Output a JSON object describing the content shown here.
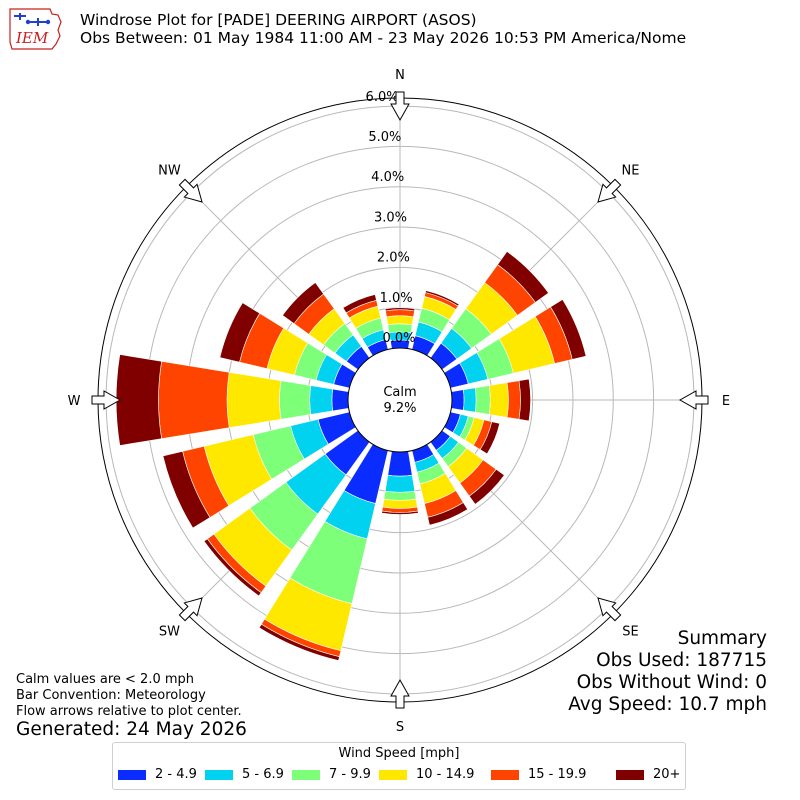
{
  "header": {
    "logo_text": "IEM",
    "title_line1": "Windrose Plot for [PADE] DEERING AIRPORT (ASOS)",
    "title_line2": "Obs Between: 01 May 1984 11:00 AM - 23 May 2026 10:53 PM America/Nome"
  },
  "chart_data": {
    "type": "windrose",
    "directions": [
      "N",
      "NNE",
      "NE",
      "ENE",
      "E",
      "ESE",
      "SE",
      "SSE",
      "S",
      "SSW",
      "SW",
      "WSW",
      "W",
      "WNW",
      "NW",
      "NNW"
    ],
    "compass_labels": [
      "N",
      "NE",
      "E",
      "SE",
      "S",
      "SW",
      "W",
      "NW"
    ],
    "radial_ticks": [
      "0.0%",
      "1.0%",
      "2.0%",
      "3.0%",
      "4.0%",
      "5.0%",
      "6.0%"
    ],
    "rmax": 6.2,
    "calm": {
      "label": "Calm",
      "value": "9.2%"
    },
    "speed_bins": [
      {
        "label": "2 - 4.9",
        "color": "#0b2cff"
      },
      {
        "label": "5 - 6.9",
        "color": "#00d2f0"
      },
      {
        "label": "7 - 9.9",
        "color": "#7dff7a"
      },
      {
        "label": "10 - 14.9",
        "color": "#ffe800"
      },
      {
        "label": "15 - 19.9",
        "color": "#ff4400"
      },
      {
        "label": "20+",
        "color": "#800000"
      }
    ],
    "series_cumulative": [
      [
        0.2,
        0.4,
        0.6,
        0.8,
        0.95,
        1.0
      ],
      [
        0.35,
        0.7,
        1.05,
        1.35,
        1.45,
        1.5
      ],
      [
        0.45,
        0.9,
        1.5,
        2.3,
        2.85,
        3.25
      ],
      [
        0.45,
        0.95,
        1.6,
        2.65,
        3.1,
        3.45
      ],
      [
        0.3,
        0.6,
        0.95,
        1.4,
        1.7,
        1.95
      ],
      [
        0.25,
        0.45,
        0.6,
        0.85,
        1.05,
        1.25
      ],
      [
        0.25,
        0.5,
        0.75,
        1.25,
        1.65,
        1.9
      ],
      [
        0.3,
        0.55,
        0.85,
        1.35,
        1.7,
        1.9
      ],
      [
        0.6,
        1.0,
        1.2,
        1.4,
        1.5,
        1.55
      ],
      [
        1.35,
        2.25,
        3.9,
        5.1,
        5.25,
        5.35
      ],
      [
        1.0,
        2.2,
        3.3,
        4.4,
        4.6,
        4.7
      ],
      [
        0.8,
        1.5,
        2.45,
        3.7,
        4.25,
        4.75
      ],
      [
        0.4,
        0.95,
        1.7,
        3.0,
        4.7,
        5.75
      ],
      [
        0.4,
        0.85,
        1.4,
        2.1,
        2.8,
        3.3
      ],
      [
        0.35,
        0.7,
        1.05,
        1.5,
        1.95,
        2.3
      ],
      [
        0.25,
        0.5,
        0.8,
        1.1,
        1.25,
        1.4
      ]
    ]
  },
  "summary": {
    "title": "Summary",
    "obs_used": "Obs Used: 187715",
    "obs_without_wind": "Obs Without Wind: 0",
    "avg_speed": "Avg Speed: 10.7 mph"
  },
  "notes": {
    "calm": "Calm values are < 2.0 mph",
    "bar": "Bar Convention: Meteorology",
    "flow": "Flow arrows relative to plot center.",
    "generated": "Generated: 24 May 2026"
  },
  "legend": {
    "title": "Wind Speed [mph]"
  }
}
